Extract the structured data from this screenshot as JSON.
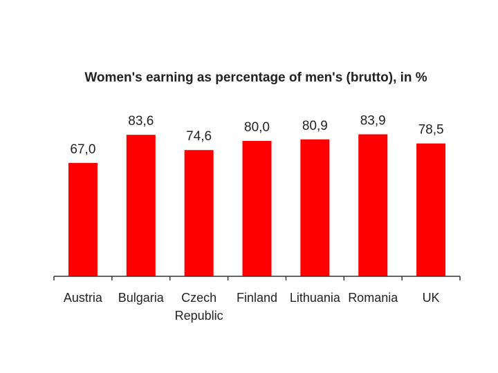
{
  "chart_data": {
    "type": "bar",
    "title": "Women's earning as percentage of men's (brutto), in %",
    "categories": [
      "Austria",
      "Bulgaria",
      "Czech Republic",
      "Finland",
      "Lithuania",
      "Romania",
      "UK"
    ],
    "category_lines": [
      [
        "Austria"
      ],
      [
        "Bulgaria"
      ],
      [
        "Czech",
        "Republic"
      ],
      [
        "Finland"
      ],
      [
        "Lithuania"
      ],
      [
        "Romania"
      ],
      [
        "UK"
      ]
    ],
    "values": [
      67.0,
      83.6,
      74.6,
      80.0,
      80.9,
      83.9,
      78.5
    ],
    "value_labels": [
      "67,0",
      "83,6",
      "74,6",
      "80,0",
      "80,9",
      "83,9",
      "78,5"
    ],
    "ylim": [
      0,
      100
    ],
    "grid": false,
    "legend": "none",
    "bar_color": "#ff0000"
  }
}
